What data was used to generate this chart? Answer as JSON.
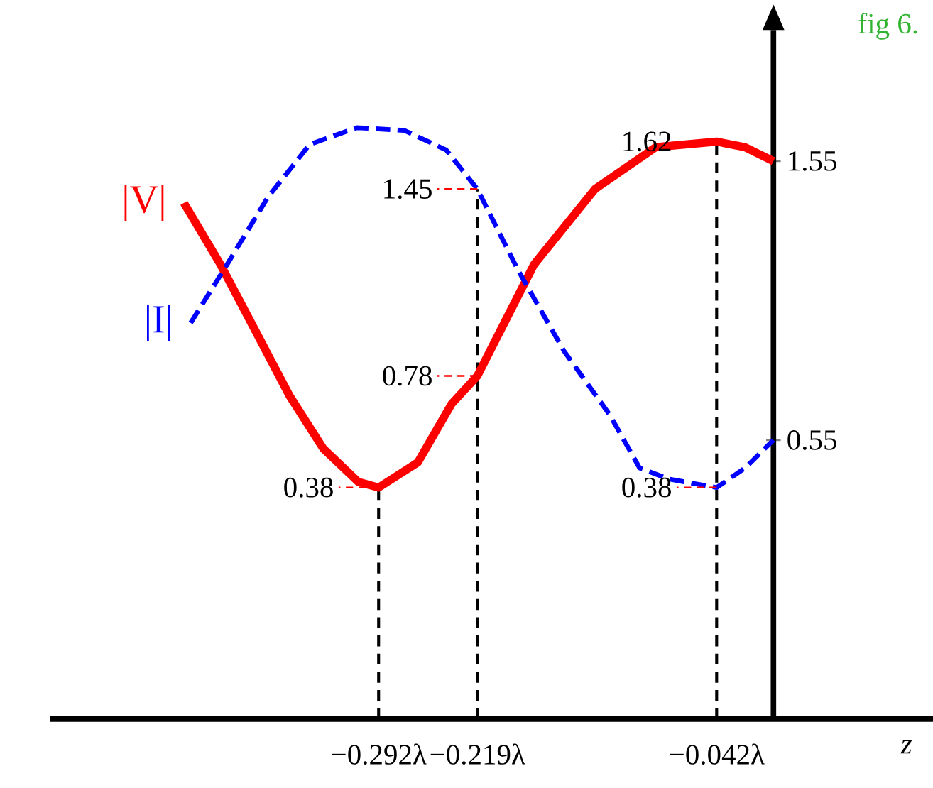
{
  "chart_data": {
    "type": "line",
    "xlabel": "z",
    "xlim": [
      -0.535,
      0.118
    ],
    "ylim": [
      -0.45,
      2.02
    ],
    "xticks": [
      {
        "value": -0.292,
        "label": "−0.292λ"
      },
      {
        "value": -0.219,
        "label": "−0.219λ"
      },
      {
        "value": -0.042,
        "label": "−0.042λ"
      }
    ],
    "yticks": [
      0.55,
      1.55
    ],
    "series": [
      {
        "name": "|V|",
        "color": "#ff0000",
        "line_style": "solid",
        "x": [
          -0.436,
          -0.409,
          -0.384,
          -0.358,
          -0.333,
          -0.307,
          -0.292,
          -0.263,
          -0.238,
          -0.219,
          -0.177,
          -0.132,
          -0.087,
          -0.042,
          -0.021,
          0
        ],
        "values": [
          1.4,
          1.18,
          0.95,
          0.71,
          0.52,
          0.4,
          0.38,
          0.47,
          0.68,
          0.78,
          1.18,
          1.45,
          1.6,
          1.62,
          1.6,
          1.55
        ]
      },
      {
        "name": "|I|",
        "color": "#0000ff",
        "line_style": "dashed",
        "x": [
          -0.431,
          -0.404,
          -0.374,
          -0.343,
          -0.308,
          -0.273,
          -0.242,
          -0.219,
          -0.189,
          -0.155,
          -0.121,
          -0.099,
          -0.077,
          -0.042,
          -0.021,
          0
        ],
        "values": [
          0.97,
          1.18,
          1.42,
          1.61,
          1.67,
          1.66,
          1.59,
          1.45,
          1.16,
          0.87,
          0.64,
          0.45,
          0.41,
          0.38,
          0.45,
          0.55
        ]
      }
    ],
    "annotations": [
      {
        "text": "0.38",
        "x": -0.292,
        "y": 0.38
      },
      {
        "text": "0.78",
        "x": -0.219,
        "y": 0.78
      },
      {
        "text": "1.45",
        "x": -0.219,
        "y": 1.45
      },
      {
        "text": "1.62",
        "x": -0.042,
        "y": 1.62
      },
      {
        "text": "0.38",
        "x": -0.042,
        "y": 0.38
      },
      "fig 6."
    ],
    "ref_lines": [
      {
        "axis": "x",
        "value": -0.292,
        "color": "#000000",
        "line_style": "dashed"
      },
      {
        "axis": "x",
        "value": -0.219,
        "color": "#000000",
        "line_style": "dashed"
      },
      {
        "axis": "x",
        "value": -0.042,
        "color": "#000000",
        "line_style": "dashed"
      }
    ]
  }
}
